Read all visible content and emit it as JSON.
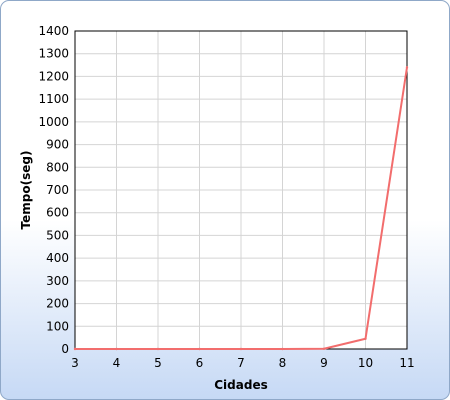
{
  "chart_data": {
    "type": "line",
    "title": "",
    "xlabel": "Cidades",
    "ylabel": "Tempo(seg)",
    "xlim": [
      3,
      11
    ],
    "ylim": [
      0,
      1400
    ],
    "x_ticks": [
      3,
      4,
      5,
      6,
      7,
      8,
      9,
      10,
      11
    ],
    "y_ticks": [
      0,
      100,
      200,
      300,
      400,
      500,
      600,
      700,
      800,
      900,
      1000,
      1100,
      1200,
      1300,
      1400
    ],
    "grid": true,
    "legend": "none",
    "series": [
      {
        "color": "#f26d6d",
        "x": [
          3,
          4,
          5,
          6,
          7,
          8,
          9,
          10,
          11
        ],
        "y": [
          0,
          0,
          0,
          0,
          0,
          0,
          1,
          45,
          1240
        ]
      }
    ]
  }
}
